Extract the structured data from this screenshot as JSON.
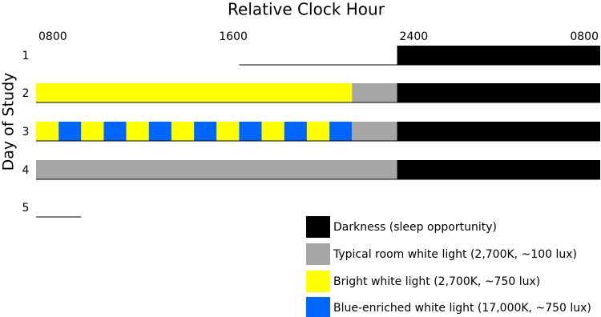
{
  "chart_data": {
    "type": "timeline",
    "title": "Relative Clock Hour",
    "y_label": "Day of Study",
    "xlim": [
      8,
      33
    ],
    "xticks": [
      {
        "value": 8,
        "label": "0800"
      },
      {
        "value": 16,
        "label": "1600"
      },
      {
        "value": 24,
        "label": "2400"
      },
      {
        "value": 32,
        "label": "0800"
      }
    ],
    "legend": [
      {
        "name": "Darkness (sleep opportunity)",
        "color": "#000000"
      },
      {
        "name": "Typical room white light (2,700K, ~100 lux)",
        "color": "#a6a6a6"
      },
      {
        "name": "Bright white light (2,700K, ~750 lux)",
        "color": "#ffff00"
      },
      {
        "name": "Blue-enriched white light (17,000K, ~750 lux)",
        "color": "#0066ff"
      }
    ],
    "rows": [
      {
        "day": "1",
        "lines": [
          [
            17,
            24
          ]
        ],
        "segments": [
          {
            "start": 24,
            "end": 33,
            "light": 0
          }
        ]
      },
      {
        "day": "2",
        "lines": [],
        "segments": [
          {
            "start": 8,
            "end": 22,
            "light": 2
          },
          {
            "start": 22,
            "end": 24,
            "light": 1
          },
          {
            "start": 24,
            "end": 33,
            "light": 0
          }
        ]
      },
      {
        "day": "3",
        "lines": [],
        "segments": [
          {
            "start": 8,
            "end": 9,
            "light": 2
          },
          {
            "start": 9,
            "end": 10,
            "light": 3
          },
          {
            "start": 10,
            "end": 11,
            "light": 2
          },
          {
            "start": 11,
            "end": 12,
            "light": 3
          },
          {
            "start": 12,
            "end": 13,
            "light": 2
          },
          {
            "start": 13,
            "end": 14,
            "light": 3
          },
          {
            "start": 14,
            "end": 15,
            "light": 2
          },
          {
            "start": 15,
            "end": 16,
            "light": 3
          },
          {
            "start": 16,
            "end": 17,
            "light": 2
          },
          {
            "start": 17,
            "end": 18,
            "light": 3
          },
          {
            "start": 18,
            "end": 19,
            "light": 2
          },
          {
            "start": 19,
            "end": 20,
            "light": 3
          },
          {
            "start": 20,
            "end": 21,
            "light": 2
          },
          {
            "start": 21,
            "end": 22,
            "light": 3
          },
          {
            "start": 22,
            "end": 24,
            "light": 1
          },
          {
            "start": 24,
            "end": 33,
            "light": 0
          }
        ]
      },
      {
        "day": "4",
        "lines": [],
        "segments": [
          {
            "start": 8,
            "end": 24,
            "light": 1
          },
          {
            "start": 24,
            "end": 33,
            "light": 0
          }
        ]
      },
      {
        "day": "5",
        "lines": [
          [
            8,
            10
          ]
        ],
        "segments": []
      }
    ]
  }
}
